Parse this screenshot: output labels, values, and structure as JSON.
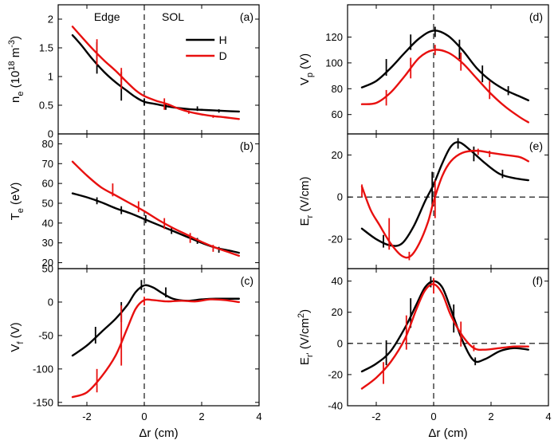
{
  "colors": {
    "H": "#000000",
    "D": "#e8100f"
  },
  "chart_data": [
    {
      "id": "a",
      "type": "line",
      "panel_tag": "(a)",
      "ylabel": "n_e (10^18 m^-3)",
      "xlabel": "",
      "xlim": [
        -3,
        4
      ],
      "ylim": [
        0,
        2.25
      ],
      "xticks": [
        -2,
        0,
        2,
        4
      ],
      "yticks": [
        0,
        0.5,
        1,
        1.5,
        2
      ],
      "ytick_labels": [
        "0",
        "0.5",
        "1",
        "1.5",
        "2"
      ],
      "regions": [
        "Edge",
        "SOL"
      ],
      "legend": {
        "entries": [
          "H",
          "D"
        ],
        "placement": "top-right"
      },
      "series": [
        {
          "name": "H",
          "x": [
            -2.5,
            -2.2,
            -1.8,
            -1.4,
            -1.0,
            -0.6,
            -0.3,
            0,
            0.4,
            0.8,
            1.2,
            1.6,
            2.0,
            2.4,
            2.8,
            3.3
          ],
          "y": [
            1.72,
            1.55,
            1.3,
            1.08,
            0.9,
            0.75,
            0.64,
            0.56,
            0.52,
            0.48,
            0.45,
            0.43,
            0.42,
            0.41,
            0.4,
            0.39
          ],
          "errors": [
            {
              "x": -1.65,
              "lo": 1.05,
              "hi": 1.6
            },
            {
              "x": -0.8,
              "lo": 0.58,
              "hi": 1.08
            },
            {
              "x": 0,
              "lo": 0.5,
              "hi": 0.62
            },
            {
              "x": 0.75,
              "lo": 0.42,
              "hi": 0.54
            },
            {
              "x": 1.85,
              "lo": 0.4,
              "hi": 0.48
            },
            {
              "x": 2.6,
              "lo": 0.37,
              "hi": 0.43
            }
          ]
        },
        {
          "name": "D",
          "x": [
            -2.5,
            -2.2,
            -1.8,
            -1.4,
            -1.0,
            -0.6,
            -0.3,
            0,
            0.4,
            0.8,
            1.2,
            1.6,
            2.0,
            2.4,
            2.8,
            3.3
          ],
          "y": [
            1.87,
            1.7,
            1.48,
            1.28,
            1.1,
            0.9,
            0.76,
            0.66,
            0.58,
            0.52,
            0.44,
            0.38,
            0.34,
            0.31,
            0.29,
            0.26
          ],
          "errors": [
            {
              "x": -1.65,
              "lo": 1.2,
              "hi": 1.65
            },
            {
              "x": -0.8,
              "lo": 0.78,
              "hi": 1.15
            },
            {
              "x": 0.7,
              "lo": 0.42,
              "hi": 0.62
            },
            {
              "x": 1.55,
              "lo": 0.35,
              "hi": 0.41
            },
            {
              "x": 2.4,
              "lo": 0.28,
              "hi": 0.33
            }
          ]
        }
      ]
    },
    {
      "id": "b",
      "type": "line",
      "panel_tag": "(b)",
      "ylabel": "T_e (eV)",
      "xlabel": "",
      "xlim": [
        -3,
        4
      ],
      "ylim": [
        17,
        85
      ],
      "xticks": [
        -2,
        0,
        2,
        4
      ],
      "yticks": [
        20,
        30,
        40,
        50,
        60,
        70,
        80
      ],
      "ytick_labels": [
        "20",
        "30",
        "40",
        "50",
        "60",
        "70",
        "80"
      ],
      "series": [
        {
          "name": "H",
          "x": [
            -2.5,
            -2.0,
            -1.5,
            -1.0,
            -0.5,
            0,
            0.5,
            1.0,
            1.5,
            2.0,
            2.5,
            3.0,
            3.3
          ],
          "y": [
            55,
            53,
            50.5,
            47.5,
            45,
            42,
            39,
            36,
            33,
            30,
            27.5,
            26,
            25
          ],
          "errors": [
            {
              "x": -1.65,
              "lo": 49.5,
              "hi": 53
            },
            {
              "x": -0.8,
              "lo": 44.5,
              "hi": 48.5
            },
            {
              "x": 0.05,
              "lo": 40,
              "hi": 44
            },
            {
              "x": 0.95,
              "lo": 34.5,
              "hi": 38
            },
            {
              "x": 1.85,
              "lo": 29.5,
              "hi": 32.5
            },
            {
              "x": 2.6,
              "lo": 25,
              "hi": 28
            }
          ]
        },
        {
          "name": "D",
          "x": [
            -2.5,
            -2.0,
            -1.5,
            -1.0,
            -0.5,
            0,
            0.5,
            1.0,
            1.5,
            2.0,
            2.5,
            3.0,
            3.3
          ],
          "y": [
            71,
            64,
            58,
            54,
            50,
            46,
            41.5,
            37.5,
            34,
            30.5,
            27.5,
            25,
            23.5
          ],
          "errors": [
            {
              "x": -1.1,
              "lo": 53.5,
              "hi": 60
            },
            {
              "x": -0.2,
              "lo": 45.5,
              "hi": 51
            },
            {
              "x": 0.7,
              "lo": 37,
              "hi": 42.5
            },
            {
              "x": 1.6,
              "lo": 30,
              "hi": 35
            },
            {
              "x": 2.4,
              "lo": 25.5,
              "hi": 29
            }
          ]
        }
      ]
    },
    {
      "id": "c",
      "type": "line",
      "panel_tag": "(c)",
      "ylabel": "V_f (V)",
      "xlabel": "Δr (cm)",
      "xlim": [
        -3,
        4
      ],
      "ylim": [
        -155,
        50
      ],
      "xticks": [
        -2,
        0,
        2,
        4
      ],
      "yticks": [
        -150,
        -100,
        -50,
        0,
        50
      ],
      "xtick_labels": [
        "-2",
        "0",
        "2",
        "4"
      ],
      "ytick_labels": [
        "-150",
        "-100",
        "-50",
        "0",
        "50"
      ],
      "series": [
        {
          "name": "H",
          "x": [
            -2.5,
            -2.0,
            -1.5,
            -1.0,
            -0.6,
            -0.3,
            0,
            0.3,
            0.6,
            1.0,
            1.5,
            2.0,
            2.5,
            3.0,
            3.3
          ],
          "y": [
            -80,
            -65,
            -45,
            -25,
            -5,
            15,
            25,
            22,
            14,
            5,
            2,
            4,
            5,
            5,
            5
          ],
          "errors": [
            {
              "x": -1.7,
              "lo": -62,
              "hi": -37
            },
            {
              "x": -0.8,
              "lo": -30,
              "hi": 0
            },
            {
              "x": -0.1,
              "lo": 18,
              "hi": 33
            },
            {
              "x": 0.75,
              "lo": 7,
              "hi": 22
            }
          ]
        },
        {
          "name": "D",
          "x": [
            -2.5,
            -2.0,
            -1.5,
            -1.0,
            -0.6,
            -0.3,
            0,
            0.3,
            0.8,
            1.3,
            1.8,
            2.3,
            2.8,
            3.3
          ],
          "y": [
            -142,
            -135,
            -112,
            -80,
            -40,
            -10,
            3,
            3,
            1,
            2,
            1,
            4,
            3,
            0
          ],
          "errors": [
            {
              "x": -1.65,
              "lo": -135,
              "hi": -100
            },
            {
              "x": -0.8,
              "lo": -95,
              "hi": -5
            },
            {
              "x": 0,
              "lo": -5,
              "hi": 8
            }
          ]
        }
      ]
    },
    {
      "id": "d",
      "type": "line",
      "panel_tag": "(d)",
      "ylabel": "V_p (V)",
      "xlabel": "",
      "xlim": [
        -3,
        4
      ],
      "ylim": [
        45,
        145
      ],
      "xticks": [
        -2,
        0,
        2,
        4
      ],
      "yticks": [
        60,
        80,
        100,
        120
      ],
      "ytick_labels": [
        "60",
        "80",
        "100",
        "120"
      ],
      "series": [
        {
          "name": "H",
          "x": [
            -2.5,
            -2.0,
            -1.5,
            -1.0,
            -0.5,
            0,
            0.5,
            1.0,
            1.5,
            2.0,
            2.5,
            3.0,
            3.3
          ],
          "y": [
            81,
            86,
            96,
            108,
            119,
            125,
            121,
            110,
            96,
            86,
            79,
            74,
            71
          ],
          "errors": [
            {
              "x": -1.65,
              "lo": 90,
              "hi": 103
            },
            {
              "x": -0.8,
              "lo": 110,
              "hi": 122
            },
            {
              "x": 0.05,
              "lo": 120,
              "hi": 128
            },
            {
              "x": 0.9,
              "lo": 103,
              "hi": 118
            },
            {
              "x": 1.7,
              "lo": 85,
              "hi": 98
            },
            {
              "x": 2.6,
              "lo": 75,
              "hi": 82
            }
          ]
        },
        {
          "name": "D",
          "x": [
            -2.5,
            -2.0,
            -1.5,
            -1.0,
            -0.5,
            0,
            0.5,
            1.0,
            1.5,
            2.0,
            2.5,
            3.0,
            3.3
          ],
          "y": [
            68,
            69,
            77,
            90,
            104,
            110,
            108,
            100,
            88,
            76,
            66,
            58,
            54
          ],
          "errors": [
            {
              "x": -1.65,
              "lo": 67,
              "hi": 79
            },
            {
              "x": -0.8,
              "lo": 88,
              "hi": 104
            },
            {
              "x": 0.05,
              "lo": 106,
              "hi": 114
            },
            {
              "x": 0.95,
              "lo": 94,
              "hi": 108
            },
            {
              "x": 1.95,
              "lo": 72,
              "hi": 86
            }
          ]
        }
      ]
    },
    {
      "id": "e",
      "type": "line",
      "panel_tag": "(e)",
      "ylabel": "E_r (V/cm)",
      "xlabel": "",
      "xlim": [
        -3,
        4
      ],
      "ylim": [
        -34,
        30
      ],
      "xticks": [
        -2,
        0,
        2,
        4
      ],
      "yticks": [
        -20,
        0,
        20
      ],
      "ytick_labels": [
        "-20",
        "0",
        "20"
      ],
      "series": [
        {
          "name": "H",
          "x": [
            -2.5,
            -2.0,
            -1.5,
            -1.1,
            -0.7,
            -0.3,
            0,
            0.3,
            0.6,
            0.9,
            1.3,
            1.8,
            2.3,
            2.8,
            3.3
          ],
          "y": [
            -15,
            -20,
            -23,
            -22,
            -14,
            -2,
            6,
            16,
            24,
            26,
            22,
            16,
            11,
            9,
            8
          ],
          "errors": [
            {
              "x": -1.75,
              "lo": -24,
              "hi": -18
            },
            {
              "x": -0.05,
              "lo": -4,
              "hi": 12
            },
            {
              "x": 0.85,
              "lo": 23,
              "hi": 28
            },
            {
              "x": 1.4,
              "lo": 17,
              "hi": 24
            },
            {
              "x": 2.4,
              "lo": 9,
              "hi": 13
            }
          ]
        },
        {
          "name": "D",
          "x": [
            -2.5,
            -2.2,
            -1.9,
            -1.5,
            -1.1,
            -0.8,
            -0.5,
            -0.2,
            0,
            0.3,
            0.6,
            1.0,
            1.5,
            2.0,
            2.5,
            3.0,
            3.3
          ],
          "y": [
            5,
            -6,
            -13,
            -22,
            -28,
            -28,
            -22,
            -12,
            -2,
            10,
            17,
            21,
            22,
            21,
            20,
            19,
            17
          ],
          "errors": [
            {
              "x": -2.5,
              "lo": 0,
              "hi": 6
            },
            {
              "x": -1.55,
              "lo": -25,
              "hi": -10
            },
            {
              "x": -0.85,
              "lo": -30,
              "hi": -26
            },
            {
              "x": 0.05,
              "lo": -10,
              "hi": 8
            },
            {
              "x": 1.55,
              "lo": 20,
              "hi": 23
            },
            {
              "x": 1.95,
              "lo": 19,
              "hi": 22
            }
          ]
        }
      ]
    },
    {
      "id": "f",
      "type": "line",
      "panel_tag": "(f)",
      "ylabel": "E_r' (V/cm^2)",
      "xlabel": "Δr (cm)",
      "xlim": [
        -3,
        4
      ],
      "ylim": [
        -40,
        48
      ],
      "xticks": [
        -2,
        0,
        2,
        4
      ],
      "yticks": [
        -40,
        -20,
        0,
        20,
        40
      ],
      "xtick_labels": [
        "-2",
        "0",
        "2",
        "4"
      ],
      "ytick_labels": [
        "-40",
        "-20",
        "0",
        "20",
        "40"
      ],
      "series": [
        {
          "name": "H",
          "x": [
            -2.5,
            -2.0,
            -1.5,
            -1.0,
            -0.6,
            -0.3,
            0,
            0.3,
            0.6,
            1.0,
            1.4,
            1.8,
            2.3,
            2.8,
            3.3
          ],
          "y": [
            -18,
            -13,
            -5,
            10,
            25,
            36,
            40,
            36,
            22,
            2,
            -11,
            -10,
            -5,
            -3,
            -4
          ],
          "errors": [
            {
              "x": -1.65,
              "lo": -14,
              "hi": 2
            },
            {
              "x": -0.8,
              "lo": 10,
              "hi": 29
            },
            {
              "x": -0.1,
              "lo": 36,
              "hi": 43
            },
            {
              "x": 0.7,
              "lo": 7,
              "hi": 25
            },
            {
              "x": 1.45,
              "lo": -14,
              "hi": -9
            }
          ]
        },
        {
          "name": "D",
          "x": [
            -2.5,
            -2.0,
            -1.5,
            -1.0,
            -0.6,
            -0.3,
            0,
            0.3,
            0.6,
            1.0,
            1.4,
            1.8,
            2.3,
            2.8,
            3.3
          ],
          "y": [
            -29,
            -22,
            -12,
            3,
            22,
            34,
            38,
            32,
            18,
            5,
            -3,
            -4,
            -3,
            -2,
            -2
          ],
          "errors": [
            {
              "x": -1.75,
              "lo": -26,
              "hi": -12
            },
            {
              "x": -0.95,
              "lo": -4,
              "hi": 18
            },
            {
              "x": 0,
              "lo": 32,
              "hi": 42
            },
            {
              "x": 0.95,
              "lo": -2,
              "hi": 14
            },
            {
              "x": 1.4,
              "lo": -5,
              "hi": -1
            }
          ]
        }
      ]
    }
  ]
}
